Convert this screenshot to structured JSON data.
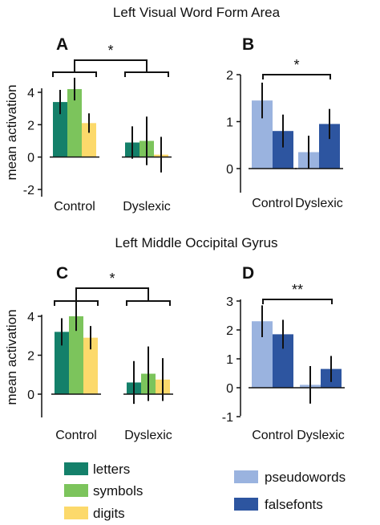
{
  "section_titles": [
    "Left Visual Word Form Area",
    "Left Middle Occipital Gyrus"
  ],
  "y_axis_label": "mean activation",
  "group_labels": [
    "Control",
    "Dyslexic"
  ],
  "legend": {
    "left": [
      {
        "label": "letters",
        "color": "#14806a"
      },
      {
        "label": "symbols",
        "color": "#7cc45c"
      },
      {
        "label": "digits",
        "color": "#fcd96b"
      }
    ],
    "right": [
      {
        "label": "pseudowords",
        "color": "#9ab3df"
      },
      {
        "label": "falsefonts",
        "color": "#2d55a0"
      }
    ]
  },
  "chart_data": [
    {
      "panel": "A",
      "type": "bar",
      "categories": [
        "Control",
        "Dyslexic"
      ],
      "series": [
        {
          "name": "letters",
          "color": "#14806a",
          "values": [
            3.4,
            0.9
          ],
          "err": [
            0.75,
            1.0
          ]
        },
        {
          "name": "symbols",
          "color": "#7cc45c",
          "values": [
            4.2,
            1.0
          ],
          "err": [
            0.7,
            1.5
          ]
        },
        {
          "name": "digits",
          "color": "#fcd96b",
          "values": [
            2.1,
            0.15
          ],
          "err": [
            0.6,
            1.1
          ]
        }
      ],
      "yticks": [
        -2,
        0,
        2,
        4
      ],
      "ylim": [
        -2,
        5
      ],
      "significance": "*"
    },
    {
      "panel": "B",
      "type": "bar",
      "categories": [
        "Control",
        "Dyslexic"
      ],
      "series": [
        {
          "name": "pseudowords",
          "color": "#9ab3df",
          "values": [
            1.45,
            0.35
          ],
          "err": [
            0.38,
            0.35
          ]
        },
        {
          "name": "falsefonts",
          "color": "#2d55a0",
          "values": [
            0.8,
            0.95
          ],
          "err": [
            0.35,
            0.32
          ]
        }
      ],
      "yticks": [
        0,
        1,
        2
      ],
      "ylim": [
        -0.5,
        2
      ],
      "significance": "*"
    },
    {
      "panel": "C",
      "type": "bar",
      "categories": [
        "Control",
        "Dyslexic"
      ],
      "series": [
        {
          "name": "letters",
          "color": "#14806a",
          "values": [
            3.2,
            0.6
          ],
          "err": [
            0.7,
            1.1
          ]
        },
        {
          "name": "symbols",
          "color": "#7cc45c",
          "values": [
            4.0,
            1.05
          ],
          "err": [
            0.75,
            1.4
          ]
        },
        {
          "name": "digits",
          "color": "#fcd96b",
          "values": [
            2.9,
            0.75
          ],
          "err": [
            0.6,
            1.1
          ]
        }
      ],
      "yticks": [
        0,
        2,
        4
      ],
      "ylim": [
        -0.5,
        5
      ],
      "significance": "*"
    },
    {
      "panel": "D",
      "type": "bar",
      "categories": [
        "Control",
        "Dyslexic"
      ],
      "series": [
        {
          "name": "pseudowords",
          "color": "#9ab3df",
          "values": [
            2.3,
            0.1
          ],
          "err": [
            0.55,
            0.65
          ]
        },
        {
          "name": "falsefonts",
          "color": "#2d55a0",
          "values": [
            1.85,
            0.65
          ],
          "err": [
            0.5,
            0.45
          ]
        }
      ],
      "yticks": [
        -1,
        0,
        1,
        2,
        3
      ],
      "ylim": [
        -1,
        3
      ],
      "significance": "**"
    }
  ]
}
